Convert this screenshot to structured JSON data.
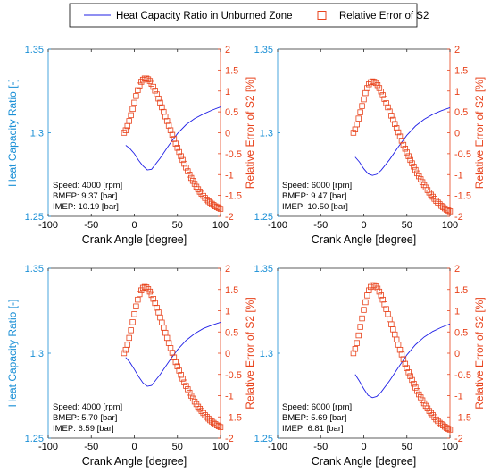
{
  "legend": {
    "line_label": "Heat Capacity Ratio in Unburned Zone",
    "marker_label": "Relative Error of S2"
  },
  "colors": {
    "line": "#1f1fe6",
    "marker": "#e8431c",
    "left_axis": "#1a8fd6",
    "right_axis": "#e8431c",
    "text": "#000000"
  },
  "chart_data": [
    {
      "type": "line",
      "panel": "top-left",
      "xlabel": "Crank Angle [degree]",
      "ylabel_left": "Heat Capacity Ratio [-]",
      "ylabel_right": "Relative Error of S2 [%]",
      "xlim": [
        -100,
        100
      ],
      "xticks": [
        -100,
        -50,
        0,
        50,
        100
      ],
      "ylim_left": [
        1.25,
        1.35
      ],
      "yticks_left": [
        "1.25",
        "1.3",
        "1.35"
      ],
      "ylim_right": [
        -2,
        2
      ],
      "yticks_right": [
        "-2",
        "-1.5",
        "-1",
        "-0.5",
        "0",
        "0.5",
        "1",
        "1.5",
        "2"
      ],
      "annotations": [
        "Speed: 4000 [rpm]",
        "BMEP: 9.37 [bar]",
        "IMEP: 10.19 [bar]"
      ],
      "series": [
        {
          "name": "Heat Capacity Ratio in Unburned Zone",
          "axis": "left",
          "x": [
            -10,
            -5,
            0,
            5,
            10,
            15,
            20,
            30,
            40,
            50,
            60,
            70,
            80,
            90,
            100
          ],
          "y": [
            1.2925,
            1.2905,
            1.2875,
            1.2835,
            1.2802,
            1.2778,
            1.2782,
            1.2848,
            1.2925,
            1.2995,
            1.3048,
            1.3085,
            1.3112,
            1.3135,
            1.3155
          ]
        },
        {
          "name": "Relative Error of S2",
          "axis": "right",
          "marker": "square",
          "x": [
            -12,
            -10,
            -8,
            -6,
            -4,
            -2,
            0,
            2,
            4,
            6,
            8,
            10,
            12,
            14,
            16,
            18,
            20,
            22,
            24,
            26,
            28,
            30,
            32,
            34,
            36,
            38,
            40,
            42,
            44,
            46,
            48,
            50,
            52,
            54,
            56,
            58,
            60,
            62,
            64,
            66,
            68,
            70,
            72,
            74,
            76,
            78,
            80,
            82,
            84,
            86,
            88,
            90,
            92,
            94,
            96,
            98,
            100
          ],
          "y": [
            0.0,
            0.06,
            0.16,
            0.28,
            0.42,
            0.57,
            0.72,
            0.88,
            1.02,
            1.13,
            1.22,
            1.27,
            1.3,
            1.3,
            1.28,
            1.24,
            1.17,
            1.1,
            1.01,
            0.92,
            0.82,
            0.72,
            0.61,
            0.5,
            0.39,
            0.28,
            0.17,
            0.06,
            -0.05,
            -0.15,
            -0.26,
            -0.36,
            -0.46,
            -0.56,
            -0.65,
            -0.74,
            -0.83,
            -0.92,
            -1.0,
            -1.08,
            -1.15,
            -1.22,
            -1.29,
            -1.35,
            -1.41,
            -1.46,
            -1.51,
            -1.56,
            -1.6,
            -1.64,
            -1.67,
            -1.7,
            -1.73,
            -1.76,
            -1.78,
            -1.8,
            -1.82
          ]
        }
      ]
    },
    {
      "type": "line",
      "panel": "top-right",
      "xlabel": "Crank Angle [degree]",
      "ylabel_left": "",
      "ylabel_right": "Relative Error of S2 [%]",
      "xlim": [
        -100,
        100
      ],
      "xticks": [
        -100,
        -50,
        0,
        50,
        100
      ],
      "ylim_left": [
        1.25,
        1.35
      ],
      "yticks_left": [
        "1.25",
        "1.3",
        "1.35"
      ],
      "ylim_right": [
        -2,
        2
      ],
      "yticks_right": [
        "-2",
        "-1.5",
        "-1",
        "-0.5",
        "0",
        "0.5",
        "1",
        "1.5",
        "2"
      ],
      "annotations": [
        "Speed: 6000 [rpm]",
        "BMEP: 9.47 [bar]",
        "IMEP: 10.50 [bar]"
      ],
      "series": [
        {
          "name": "Heat Capacity Ratio in Unburned Zone",
          "axis": "left",
          "x": [
            -10,
            -5,
            0,
            5,
            10,
            15,
            20,
            30,
            40,
            50,
            60,
            70,
            80,
            90,
            100
          ],
          "y": [
            1.2855,
            1.2825,
            1.2785,
            1.2755,
            1.2745,
            1.2752,
            1.2775,
            1.284,
            1.2915,
            1.2985,
            1.304,
            1.308,
            1.311,
            1.3132,
            1.315
          ]
        },
        {
          "name": "Relative Error of S2",
          "axis": "right",
          "marker": "square",
          "x": [
            -12,
            -10,
            -8,
            -6,
            -4,
            -2,
            0,
            2,
            4,
            6,
            8,
            10,
            12,
            14,
            16,
            18,
            20,
            22,
            24,
            26,
            28,
            30,
            32,
            34,
            36,
            38,
            40,
            42,
            44,
            46,
            48,
            50,
            52,
            54,
            56,
            58,
            60,
            62,
            64,
            66,
            68,
            70,
            72,
            74,
            76,
            78,
            80,
            82,
            84,
            86,
            88,
            90,
            92,
            94,
            96,
            98,
            100
          ],
          "y": [
            0.0,
            0.08,
            0.2,
            0.34,
            0.49,
            0.64,
            0.8,
            0.95,
            1.07,
            1.16,
            1.21,
            1.23,
            1.22,
            1.19,
            1.14,
            1.07,
            0.99,
            0.9,
            0.81,
            0.71,
            0.61,
            0.51,
            0.41,
            0.31,
            0.21,
            0.11,
            0.01,
            -0.09,
            -0.19,
            -0.29,
            -0.38,
            -0.47,
            -0.56,
            -0.65,
            -0.73,
            -0.81,
            -0.89,
            -0.97,
            -1.04,
            -1.11,
            -1.18,
            -1.25,
            -1.31,
            -1.37,
            -1.43,
            -1.48,
            -1.53,
            -1.58,
            -1.63,
            -1.67,
            -1.71,
            -1.75,
            -1.78,
            -1.81,
            -1.84,
            -1.86,
            -1.88
          ]
        }
      ]
    },
    {
      "type": "line",
      "panel": "bottom-left",
      "xlabel": "Crank Angle [degree]",
      "ylabel_left": "Heat Capacity Ratio [-]",
      "ylabel_right": "Relative Error of S2 [%]",
      "xlim": [
        -100,
        100
      ],
      "xticks": [
        -100,
        -50,
        0,
        50,
        100
      ],
      "ylim_left": [
        1.25,
        1.35
      ],
      "yticks_left": [
        "1.25",
        "1.3",
        "1.35"
      ],
      "ylim_right": [
        -2,
        2
      ],
      "yticks_right": [
        "-2",
        "-1.5",
        "-1",
        "-0.5",
        "0",
        "0.5",
        "1",
        "1.5",
        "2"
      ],
      "annotations": [
        "Speed: 4000 [rpm]",
        "BMEP: 5.70 [bar]",
        "IMEP: 6.59 [bar]"
      ],
      "series": [
        {
          "name": "Heat Capacity Ratio in Unburned Zone",
          "axis": "left",
          "x": [
            -10,
            -5,
            0,
            5,
            10,
            15,
            20,
            30,
            40,
            50,
            60,
            70,
            80,
            90,
            100
          ],
          "y": [
            1.2975,
            1.2945,
            1.2905,
            1.2862,
            1.2825,
            1.2805,
            1.281,
            1.2875,
            1.295,
            1.302,
            1.3075,
            1.3115,
            1.3145,
            1.3165,
            1.3182
          ]
        },
        {
          "name": "Relative Error of S2",
          "axis": "right",
          "marker": "square",
          "x": [
            -12,
            -10,
            -8,
            -6,
            -4,
            -2,
            0,
            2,
            4,
            6,
            8,
            10,
            12,
            14,
            16,
            18,
            20,
            22,
            24,
            26,
            28,
            30,
            32,
            34,
            36,
            38,
            40,
            42,
            44,
            46,
            48,
            50,
            52,
            54,
            56,
            58,
            60,
            62,
            64,
            66,
            68,
            70,
            72,
            74,
            76,
            78,
            80,
            82,
            84,
            86,
            88,
            90,
            92,
            94,
            96,
            98,
            100
          ],
          "y": [
            0.0,
            0.08,
            0.2,
            0.36,
            0.54,
            0.73,
            0.92,
            1.1,
            1.26,
            1.39,
            1.48,
            1.54,
            1.56,
            1.55,
            1.51,
            1.45,
            1.37,
            1.28,
            1.18,
            1.07,
            0.96,
            0.84,
            0.72,
            0.6,
            0.48,
            0.36,
            0.24,
            0.12,
            0.01,
            -0.1,
            -0.21,
            -0.31,
            -0.41,
            -0.51,
            -0.6,
            -0.69,
            -0.77,
            -0.85,
            -0.93,
            -1.0,
            -1.07,
            -1.14,
            -1.2,
            -1.26,
            -1.31,
            -1.36,
            -1.41,
            -1.46,
            -1.5,
            -1.54,
            -1.58,
            -1.61,
            -1.64,
            -1.67,
            -1.7,
            -1.72,
            -1.74
          ]
        }
      ]
    },
    {
      "type": "line",
      "panel": "bottom-right",
      "xlabel": "Crank Angle [degree]",
      "ylabel_left": "",
      "ylabel_right": "Relative Error of S2 [%]",
      "xlim": [
        -100,
        100
      ],
      "xticks": [
        -100,
        -50,
        0,
        50,
        100
      ],
      "ylim_left": [
        1.25,
        1.35
      ],
      "yticks_left": [
        "1.25",
        "1.3",
        "1.35"
      ],
      "ylim_right": [
        -2,
        2
      ],
      "yticks_right": [
        "-2",
        "-1.5",
        "-1",
        "-0.5",
        "0",
        "0.5",
        "1",
        "1.5",
        "2"
      ],
      "annotations": [
        "Speed: 6000 [rpm]",
        "BMEP: 5.69 [bar]",
        "IMEP: 6.81 [bar]"
      ],
      "series": [
        {
          "name": "Heat Capacity Ratio in Unburned Zone",
          "axis": "left",
          "x": [
            -10,
            -5,
            0,
            5,
            10,
            15,
            20,
            30,
            40,
            50,
            60,
            70,
            80,
            90,
            100
          ],
          "y": [
            1.2875,
            1.2835,
            1.279,
            1.2752,
            1.2738,
            1.2745,
            1.277,
            1.2838,
            1.2915,
            1.299,
            1.305,
            1.3095,
            1.3128,
            1.3152,
            1.3172
          ]
        },
        {
          "name": "Relative Error of S2",
          "axis": "right",
          "marker": "square",
          "x": [
            -12,
            -10,
            -8,
            -6,
            -4,
            -2,
            0,
            2,
            4,
            6,
            8,
            10,
            12,
            14,
            16,
            18,
            20,
            22,
            24,
            26,
            28,
            30,
            32,
            34,
            36,
            38,
            40,
            42,
            44,
            46,
            48,
            50,
            52,
            54,
            56,
            58,
            60,
            62,
            64,
            66,
            68,
            70,
            72,
            74,
            76,
            78,
            80,
            82,
            84,
            86,
            88,
            90,
            92,
            94,
            96,
            98,
            100
          ],
          "y": [
            0.0,
            0.1,
            0.24,
            0.42,
            0.62,
            0.82,
            1.02,
            1.2,
            1.36,
            1.48,
            1.56,
            1.6,
            1.6,
            1.57,
            1.52,
            1.45,
            1.36,
            1.26,
            1.15,
            1.04,
            0.92,
            0.8,
            0.68,
            0.56,
            0.44,
            0.32,
            0.2,
            0.08,
            -0.03,
            -0.14,
            -0.25,
            -0.35,
            -0.45,
            -0.54,
            -0.63,
            -0.72,
            -0.81,
            -0.89,
            -0.97,
            -1.04,
            -1.11,
            -1.18,
            -1.24,
            -1.3,
            -1.36,
            -1.41,
            -1.46,
            -1.51,
            -1.56,
            -1.6,
            -1.64,
            -1.67,
            -1.7,
            -1.73,
            -1.76,
            -1.78,
            -1.8
          ]
        }
      ]
    }
  ]
}
